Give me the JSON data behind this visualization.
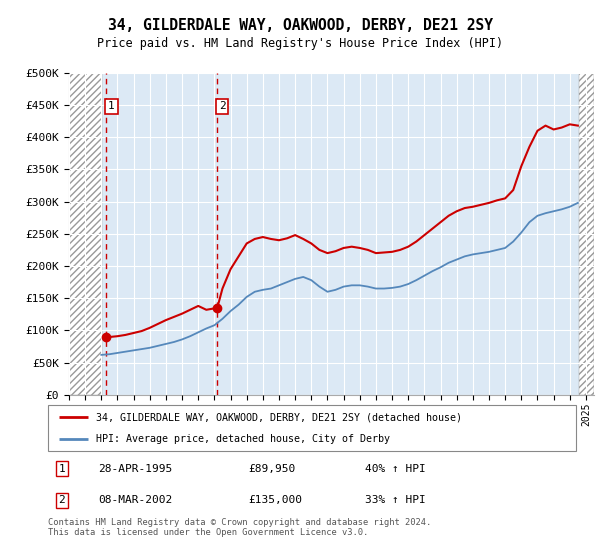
{
  "title": "34, GILDERDALE WAY, OAKWOOD, DERBY, DE21 2SY",
  "subtitle": "Price paid vs. HM Land Registry's House Price Index (HPI)",
  "legend_line1": "34, GILDERDALE WAY, OAKWOOD, DERBY, DE21 2SY (detached house)",
  "legend_line2": "HPI: Average price, detached house, City of Derby",
  "footer": "Contains HM Land Registry data © Crown copyright and database right 2024.\nThis data is licensed under the Open Government Licence v3.0.",
  "red_line_color": "#cc0000",
  "blue_line_color": "#5588bb",
  "bg_color": "#dce9f5",
  "ylim_max": 500000,
  "yticks": [
    0,
    50000,
    100000,
    150000,
    200000,
    250000,
    300000,
    350000,
    400000,
    450000,
    500000
  ],
  "ytick_labels": [
    "£0",
    "£50K",
    "£100K",
    "£150K",
    "£200K",
    "£250K",
    "£300K",
    "£350K",
    "£400K",
    "£450K",
    "£500K"
  ],
  "xmin": 1993.0,
  "xmax": 2025.5,
  "hatch_left_end": 1995.05,
  "hatch_right_start": 2024.58,
  "sale1_x": 1995.32,
  "sale1_y": 89950,
  "sale2_x": 2002.18,
  "sale2_y": 135000,
  "hpi_x": [
    1995.0,
    1995.5,
    1996.0,
    1996.5,
    1997.0,
    1997.5,
    1998.0,
    1998.5,
    1999.0,
    1999.5,
    2000.0,
    2000.5,
    2001.0,
    2001.5,
    2002.0,
    2002.5,
    2003.0,
    2003.5,
    2004.0,
    2004.5,
    2005.0,
    2005.5,
    2006.0,
    2006.5,
    2007.0,
    2007.5,
    2008.0,
    2008.5,
    2009.0,
    2009.5,
    2010.0,
    2010.5,
    2011.0,
    2011.5,
    2012.0,
    2012.5,
    2013.0,
    2013.5,
    2014.0,
    2014.5,
    2015.0,
    2015.5,
    2016.0,
    2016.5,
    2017.0,
    2017.5,
    2018.0,
    2018.5,
    2019.0,
    2019.5,
    2020.0,
    2020.5,
    2021.0,
    2021.5,
    2022.0,
    2022.5,
    2023.0,
    2023.5,
    2024.0,
    2024.5
  ],
  "hpi_y": [
    62000,
    63000,
    65000,
    67000,
    69000,
    71000,
    73000,
    76000,
    79000,
    82000,
    86000,
    91000,
    97000,
    103000,
    108000,
    118000,
    130000,
    140000,
    152000,
    160000,
    163000,
    165000,
    170000,
    175000,
    180000,
    183000,
    178000,
    168000,
    160000,
    163000,
    168000,
    170000,
    170000,
    168000,
    165000,
    165000,
    166000,
    168000,
    172000,
    178000,
    185000,
    192000,
    198000,
    205000,
    210000,
    215000,
    218000,
    220000,
    222000,
    225000,
    228000,
    238000,
    252000,
    268000,
    278000,
    282000,
    285000,
    288000,
    292000,
    298000
  ],
  "price_x": [
    1995.32,
    1995.6,
    1996.0,
    1996.5,
    1997.0,
    1997.5,
    1998.0,
    1998.5,
    1999.0,
    1999.5,
    2000.0,
    2000.5,
    2001.0,
    2001.5,
    2002.18,
    2002.5,
    2003.0,
    2003.5,
    2004.0,
    2004.5,
    2005.0,
    2005.5,
    2006.0,
    2006.5,
    2007.0,
    2007.5,
    2008.0,
    2008.5,
    2009.0,
    2009.5,
    2010.0,
    2010.5,
    2011.0,
    2011.5,
    2012.0,
    2012.5,
    2013.0,
    2013.5,
    2014.0,
    2014.5,
    2015.0,
    2015.5,
    2016.0,
    2016.5,
    2017.0,
    2017.5,
    2018.0,
    2018.5,
    2019.0,
    2019.5,
    2020.0,
    2020.5,
    2021.0,
    2021.5,
    2022.0,
    2022.5,
    2023.0,
    2023.5,
    2024.0,
    2024.5
  ],
  "price_y": [
    89950,
    90000,
    91000,
    93000,
    96000,
    99000,
    104000,
    110000,
    116000,
    121000,
    126000,
    132000,
    138000,
    132000,
    135000,
    165000,
    195000,
    215000,
    235000,
    242000,
    245000,
    242000,
    240000,
    243000,
    248000,
    242000,
    235000,
    225000,
    220000,
    223000,
    228000,
    230000,
    228000,
    225000,
    220000,
    221000,
    222000,
    225000,
    230000,
    238000,
    248000,
    258000,
    268000,
    278000,
    285000,
    290000,
    292000,
    295000,
    298000,
    302000,
    305000,
    318000,
    355000,
    385000,
    410000,
    418000,
    412000,
    415000,
    420000,
    418000
  ]
}
